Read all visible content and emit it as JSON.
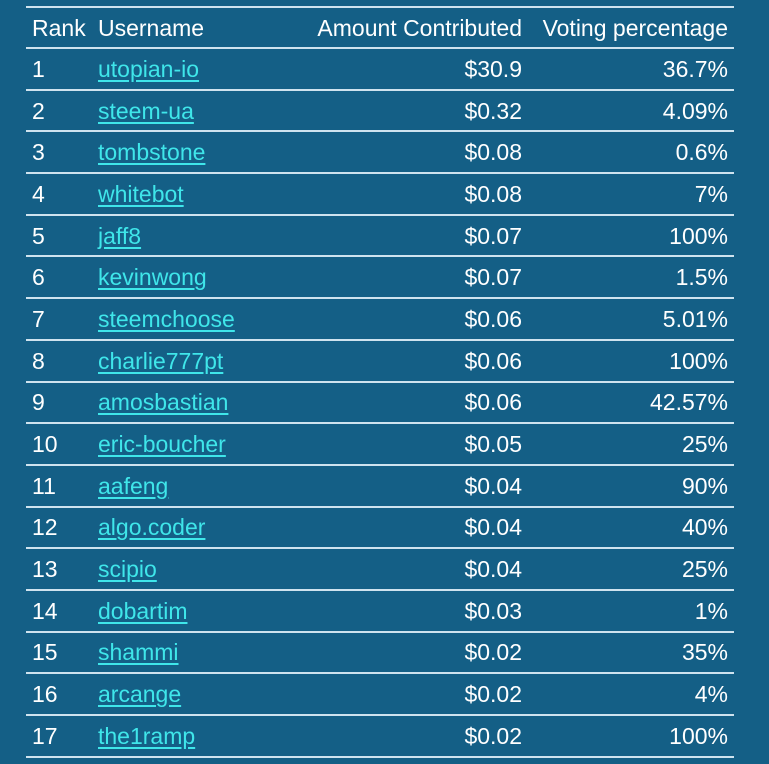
{
  "columns": {
    "rank": "Rank",
    "username": "Username",
    "amount": "Amount Contributed",
    "voting": "Voting percentage"
  },
  "colors": {
    "background": "#145f86",
    "link": "#3fe6ea",
    "text": "#ffffff",
    "divider": "#cfe3ef"
  },
  "rows": [
    {
      "rank": "1",
      "username": "utopian-io",
      "amount": "$30.9",
      "voting": "36.7%"
    },
    {
      "rank": "2",
      "username": "steem-ua",
      "amount": "$0.32",
      "voting": "4.09%"
    },
    {
      "rank": "3",
      "username": "tombstone",
      "amount": "$0.08",
      "voting": "0.6%"
    },
    {
      "rank": "4",
      "username": "whitebot",
      "amount": "$0.08",
      "voting": "7%"
    },
    {
      "rank": "5",
      "username": "jaff8",
      "amount": "$0.07",
      "voting": "100%"
    },
    {
      "rank": "6",
      "username": "kevinwong",
      "amount": "$0.07",
      "voting": "1.5%"
    },
    {
      "rank": "7",
      "username": "steemchoose",
      "amount": "$0.06",
      "voting": "5.01%"
    },
    {
      "rank": "8",
      "username": "charlie777pt",
      "amount": "$0.06",
      "voting": "100%"
    },
    {
      "rank": "9",
      "username": "amosbastian",
      "amount": "$0.06",
      "voting": "42.57%"
    },
    {
      "rank": "10",
      "username": "eric-boucher",
      "amount": "$0.05",
      "voting": "25%"
    },
    {
      "rank": "11",
      "username": "aafeng",
      "amount": "$0.04",
      "voting": "90%"
    },
    {
      "rank": "12",
      "username": "algo.coder",
      "amount": "$0.04",
      "voting": "40%"
    },
    {
      "rank": "13",
      "username": "scipio",
      "amount": "$0.04",
      "voting": "25%"
    },
    {
      "rank": "14",
      "username": "dobartim",
      "amount": "$0.03",
      "voting": "1%"
    },
    {
      "rank": "15",
      "username": "shammi",
      "amount": "$0.02",
      "voting": "35%"
    },
    {
      "rank": "16",
      "username": "arcange",
      "amount": "$0.02",
      "voting": "4%"
    },
    {
      "rank": "17",
      "username": "the1ramp",
      "amount": "$0.02",
      "voting": "100%"
    }
  ]
}
